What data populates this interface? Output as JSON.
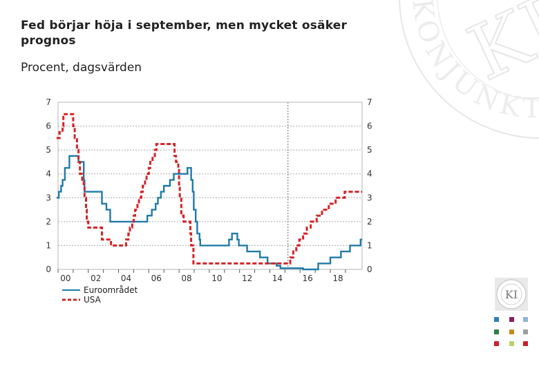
{
  "header": {
    "title": "Fed börjar höja i september, men mycket osäker prognos",
    "subtitle": "Procent, dagsvärden"
  },
  "branding": {
    "watermark_text": "KONJUNKTURINSTITUTET",
    "watermark_logo": "KI",
    "logo_text": "KI",
    "logo_ring": "KONJUNKTURINSTITUTET",
    "squares": [
      "#2e7fb8",
      "#8a1f5a",
      "#8cb6d6",
      "#2e7d45",
      "#c88a1a",
      "#9aa0a4",
      "#d0202a",
      "#b8d26a",
      "#c8202a"
    ]
  },
  "chart_data": {
    "type": "line",
    "title": "",
    "xlabel": "",
    "ylabel": "",
    "xlim": [
      2000,
      2020.1
    ],
    "ylim": [
      0,
      7
    ],
    "yticks": [
      0,
      1,
      2,
      3,
      4,
      5,
      6,
      7
    ],
    "xticks": [
      {
        "x": 2000,
        "label": "00"
      },
      {
        "x": 2002,
        "label": "02"
      },
      {
        "x": 2004,
        "label": "04"
      },
      {
        "x": 2006,
        "label": "06"
      },
      {
        "x": 2008,
        "label": "08"
      },
      {
        "x": 2010,
        "label": "10"
      },
      {
        "x": 2012,
        "label": "12"
      },
      {
        "x": 2014,
        "label": "14"
      },
      {
        "x": 2016,
        "label": "16"
      },
      {
        "x": 2018,
        "label": "18"
      }
    ],
    "forecast_line_x": 2015.2,
    "grid": true,
    "legend": "bottom-left",
    "series": [
      {
        "name": "Euroområdet",
        "color": "#1f7aa8",
        "dash": "solid",
        "step": true,
        "points": [
          [
            1999.9,
            3.0
          ],
          [
            2000.05,
            3.25
          ],
          [
            2000.2,
            3.5
          ],
          [
            2000.3,
            3.75
          ],
          [
            2000.45,
            4.25
          ],
          [
            2000.75,
            4.75
          ],
          [
            2001.35,
            4.5
          ],
          [
            2001.7,
            3.75
          ],
          [
            2001.75,
            3.25
          ],
          [
            2002.9,
            2.75
          ],
          [
            2003.2,
            2.5
          ],
          [
            2003.45,
            2.0
          ],
          [
            2005.9,
            2.25
          ],
          [
            2006.2,
            2.5
          ],
          [
            2006.45,
            2.75
          ],
          [
            2006.6,
            3.0
          ],
          [
            2006.8,
            3.25
          ],
          [
            2007.0,
            3.5
          ],
          [
            2007.4,
            3.75
          ],
          [
            2007.65,
            4.0
          ],
          [
            2008.55,
            4.25
          ],
          [
            2008.8,
            3.75
          ],
          [
            2008.9,
            3.25
          ],
          [
            2008.97,
            2.5
          ],
          [
            2009.1,
            2.0
          ],
          [
            2009.2,
            1.5
          ],
          [
            2009.35,
            1.25
          ],
          [
            2009.4,
            1.0
          ],
          [
            2011.3,
            1.25
          ],
          [
            2011.5,
            1.5
          ],
          [
            2011.85,
            1.25
          ],
          [
            2011.95,
            1.0
          ],
          [
            2012.5,
            0.75
          ],
          [
            2013.35,
            0.5
          ],
          [
            2013.85,
            0.25
          ],
          [
            2014.45,
            0.15
          ],
          [
            2014.7,
            0.05
          ],
          [
            2016.2,
            0.0
          ],
          [
            2017.2,
            0.25
          ],
          [
            2018.0,
            0.5
          ],
          [
            2018.7,
            0.75
          ],
          [
            2019.3,
            1.0
          ],
          [
            2020.0,
            1.25
          ],
          [
            2020.1,
            1.25
          ]
        ]
      },
      {
        "name": "USA",
        "color": "#d42428",
        "dash": "dashed",
        "step": true,
        "points": [
          [
            1999.9,
            5.5
          ],
          [
            2000.1,
            5.75
          ],
          [
            2000.3,
            6.0
          ],
          [
            2000.35,
            6.5
          ],
          [
            2001.0,
            6.0
          ],
          [
            2001.1,
            5.5
          ],
          [
            2001.25,
            5.0
          ],
          [
            2001.35,
            4.5
          ],
          [
            2001.45,
            4.0
          ],
          [
            2001.6,
            3.75
          ],
          [
            2001.7,
            3.5
          ],
          [
            2001.75,
            3.0
          ],
          [
            2001.85,
            2.5
          ],
          [
            2001.9,
            2.0
          ],
          [
            2002.0,
            1.75
          ],
          [
            2002.9,
            1.25
          ],
          [
            2003.5,
            1.0
          ],
          [
            2004.5,
            1.25
          ],
          [
            2004.65,
            1.5
          ],
          [
            2004.75,
            1.75
          ],
          [
            2004.9,
            2.0
          ],
          [
            2005.0,
            2.25
          ],
          [
            2005.1,
            2.5
          ],
          [
            2005.25,
            2.75
          ],
          [
            2005.35,
            3.0
          ],
          [
            2005.5,
            3.25
          ],
          [
            2005.6,
            3.5
          ],
          [
            2005.75,
            3.75
          ],
          [
            2005.85,
            4.0
          ],
          [
            2006.0,
            4.25
          ],
          [
            2006.1,
            4.5
          ],
          [
            2006.25,
            4.75
          ],
          [
            2006.4,
            5.0
          ],
          [
            2006.5,
            5.25
          ],
          [
            2007.7,
            4.75
          ],
          [
            2007.8,
            4.5
          ],
          [
            2007.95,
            4.25
          ],
          [
            2008.0,
            3.5
          ],
          [
            2008.05,
            3.0
          ],
          [
            2008.15,
            2.25
          ],
          [
            2008.3,
            2.0
          ],
          [
            2008.75,
            1.5
          ],
          [
            2008.8,
            1.0
          ],
          [
            2008.95,
            0.25
          ],
          [
            2015.2,
            0.25
          ],
          [
            2015.35,
            0.5
          ],
          [
            2015.55,
            0.75
          ],
          [
            2015.75,
            1.0
          ],
          [
            2015.95,
            1.25
          ],
          [
            2016.2,
            1.5
          ],
          [
            2016.45,
            1.75
          ],
          [
            2016.7,
            2.0
          ],
          [
            2017.1,
            2.25
          ],
          [
            2017.45,
            2.5
          ],
          [
            2017.9,
            2.75
          ],
          [
            2018.35,
            3.0
          ],
          [
            2018.95,
            3.25
          ],
          [
            2020.1,
            3.25
          ]
        ]
      }
    ]
  }
}
